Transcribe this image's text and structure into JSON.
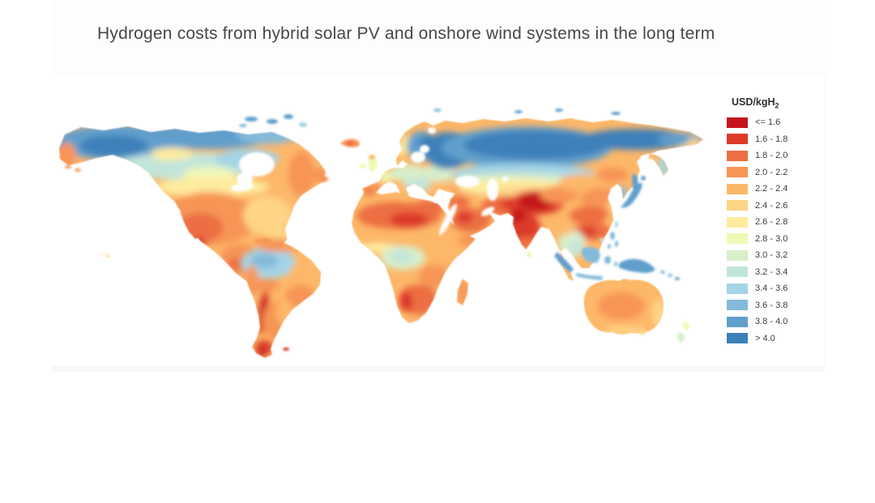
{
  "title": "Hydrogen costs from hybrid solar PV and onshore wind systems in the long term",
  "legend": {
    "title": "USD/kgH",
    "title_subscript": "2",
    "items": [
      {
        "label": "<= 1.6",
        "color": "#c4161c"
      },
      {
        "label": "1.6 - 1.8",
        "color": "#dc3b2a"
      },
      {
        "label": "1.8 - 2.0",
        "color": "#ec6e43"
      },
      {
        "label": "2.0 - 2.2",
        "color": "#f79456"
      },
      {
        "label": "2.2 - 2.4",
        "color": "#fdb768"
      },
      {
        "label": "2.4 - 2.6",
        "color": "#fed487"
      },
      {
        "label": "2.6 - 2.8",
        "color": "#feeb9e"
      },
      {
        "label": "2.8 - 3.0",
        "color": "#f0f8b5"
      },
      {
        "label": "3.0 - 3.2",
        "color": "#d8eeca"
      },
      {
        "label": "3.2 - 3.4",
        "color": "#c2e5da"
      },
      {
        "label": "3.4 - 3.6",
        "color": "#a4d4e6"
      },
      {
        "label": "3.6 - 3.8",
        "color": "#83bada"
      },
      {
        "label": "3.8 - 4.0",
        "color": "#609fcc"
      },
      {
        "label": "> 4.0",
        "color": "#3c80ba"
      }
    ]
  },
  "chart_data": {
    "type": "heatmap",
    "subtype": "world-choropleth-map",
    "title": "Hydrogen costs from hybrid solar PV and onshore wind systems in the long term",
    "unit": "USD/kgH2",
    "legend_position": "right",
    "class_breaks": [
      "<= 1.6",
      "1.6 - 1.8",
      "1.8 - 2.0",
      "2.0 - 2.2",
      "2.2 - 2.4",
      "2.4 - 2.6",
      "2.6 - 2.8",
      "2.8 - 3.0",
      "3.0 - 3.2",
      "3.2 - 3.4",
      "3.4 - 3.6",
      "3.6 - 3.8",
      "3.8 - 4.0",
      "> 4.0"
    ],
    "colors": [
      "#c4161c",
      "#dc3b2a",
      "#ec6e43",
      "#f79456",
      "#fdb768",
      "#fed487",
      "#feeb9e",
      "#f0f8b5",
      "#d8eeca",
      "#c2e5da",
      "#a4d4e6",
      "#83bada",
      "#609fcc",
      "#3c80ba"
    ],
    "regions": [
      {
        "region": "Southern Chile / Patagonia (Andes)",
        "value_usd_per_kgH2": "<= 1.6"
      },
      {
        "region": "Tibetan Plateau / Pamir / NW India",
        "value_usd_per_kgH2": "<= 1.6"
      },
      {
        "region": "Iran / Afghanistan / Pakistan",
        "value_usd_per_kgH2": "1.6 - 2.0"
      },
      {
        "region": "India (most of subcontinent)",
        "value_usd_per_kgH2": "1.6 - 2.0"
      },
      {
        "region": "Sahara / North Africa",
        "value_usd_per_kgH2": "1.8 - 2.0"
      },
      {
        "region": "Arabian Peninsula / Middle East",
        "value_usd_per_kgH2": "1.8 - 2.2"
      },
      {
        "region": "Southern Africa / Namibia",
        "value_usd_per_kgH2": "1.6 - 2.2"
      },
      {
        "region": "Horn of Africa / East Africa",
        "value_usd_per_kgH2": "2.0 - 2.4"
      },
      {
        "region": "Southwestern United States / Mexico",
        "value_usd_per_kgH2": "2.0 - 2.4"
      },
      {
        "region": "Southern China",
        "value_usd_per_kgH2": "1.8 - 2.2"
      },
      {
        "region": "Australia (interior)",
        "value_usd_per_kgH2": "2.0 - 2.4"
      },
      {
        "region": "Central Asia / Kazakhstan",
        "value_usd_per_kgH2": "2.4 - 2.8"
      },
      {
        "region": "Iberia / Turkey / Iceland",
        "value_usd_per_kgH2": "2.0 - 2.4"
      },
      {
        "region": "Central and eastern Europe",
        "value_usd_per_kgH2": "2.8 - 3.4"
      },
      {
        "region": "Amazon basin",
        "value_usd_per_kgH2": "3.4 - 3.8"
      },
      {
        "region": "Congo basin",
        "value_usd_per_kgH2": "3.0 - 3.4"
      },
      {
        "region": "Southeast Asia / Indonesia / New Guinea",
        "value_usd_per_kgH2": "3.6 - 4.0"
      },
      {
        "region": "Japan / Korea",
        "value_usd_per_kgH2": "3.8 - 4.0+"
      },
      {
        "region": "Scandinavia / Finland / NW Russia",
        "value_usd_per_kgH2": "3.8 - 4.0+"
      },
      {
        "region": "Siberia / northern Russia",
        "value_usd_per_kgH2": "> 4.0"
      },
      {
        "region": "Alaska / northern Canada",
        "value_usd_per_kgH2": "3.8 - 4.0+"
      }
    ]
  }
}
